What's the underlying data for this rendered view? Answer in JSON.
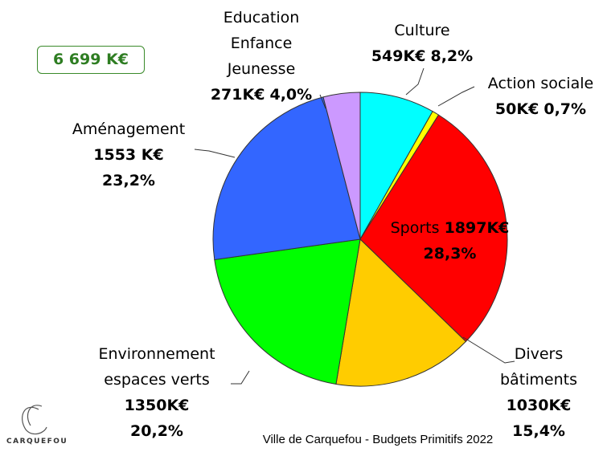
{
  "chart_data": {
    "type": "pie",
    "total": "6 699 K€",
    "categories": [
      "Culture",
      "Action sociale",
      "Sports",
      "Divers bâtiments",
      "Environnement espaces verts",
      "Aménagement",
      "Education Enfance Jeunesse"
    ],
    "values": [
      549,
      50,
      1897,
      1030,
      1350,
      1553,
      271
    ],
    "value_labels": [
      "549K€",
      "50K€",
      "1897K€",
      "1030K€",
      "1350K€",
      "1553 K€",
      "271K€"
    ],
    "percentages": [
      8.2,
      0.7,
      28.3,
      15.4,
      20.2,
      23.2,
      4.0
    ],
    "percentage_labels": [
      "8,2%",
      "0,7%",
      "28,3%",
      "15,4%",
      "20,2%",
      "23,2%",
      "4,0%"
    ],
    "colors": [
      "#00ffff",
      "#ffff00",
      "#ff0000",
      "#ffcc00",
      "#00ff00",
      "#3366ff",
      "#cc99ff"
    ],
    "footer": "Ville de Carquefou - Budgets Primitifs 2022",
    "logo_text": "CARQUEFOU"
  }
}
